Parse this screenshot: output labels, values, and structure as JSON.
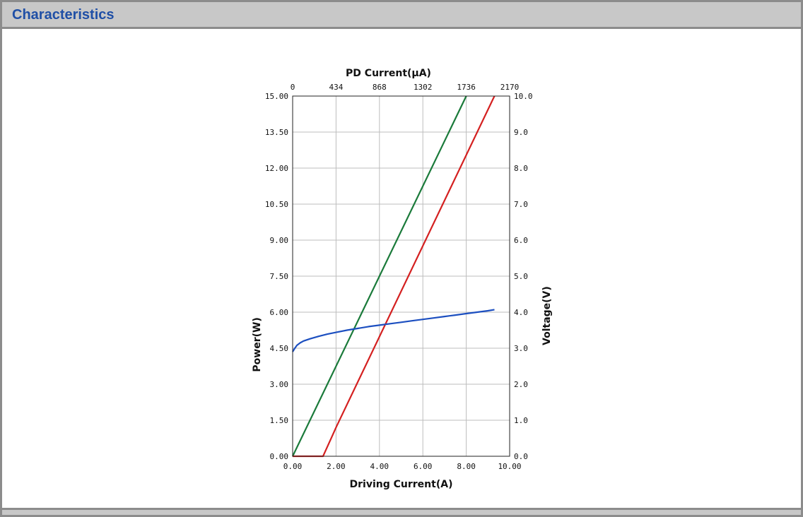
{
  "panel": {
    "title": "Characteristics"
  },
  "chart_data": {
    "type": "line",
    "xlabel": "Driving Current(A)",
    "ylabel": "Power(W)",
    "y2label": "Voltage(V)",
    "x2label": "PD Current(μA)",
    "xlim": [
      0,
      10
    ],
    "ylim": [
      0,
      15
    ],
    "y2lim": [
      0,
      10
    ],
    "x2lim": [
      0,
      2170
    ],
    "grid": true,
    "x_ticks": [
      "0.00",
      "2.00",
      "4.00",
      "6.00",
      "8.00",
      "10.00"
    ],
    "y_ticks": [
      "0.00",
      "1.50",
      "3.00",
      "4.50",
      "6.00",
      "7.50",
      "9.00",
      "10.50",
      "12.00",
      "13.50",
      "15.00"
    ],
    "y2_ticks": [
      "0.0",
      "1.0",
      "2.0",
      "3.0",
      "4.0",
      "5.0",
      "6.0",
      "7.0",
      "8.0",
      "9.0",
      "10.0"
    ],
    "x2_ticks": [
      "0",
      "434",
      "868",
      "1302",
      "1736",
      "2170"
    ],
    "series": [
      {
        "axis": "x2-y",
        "color": "#1a7a3a",
        "x": [
          0,
          1736
        ],
        "y": [
          0,
          15
        ]
      },
      {
        "axis": "x-y",
        "color": "#d42020",
        "x": [
          0,
          1.4,
          1.55,
          1.8,
          2.0,
          9.3
        ],
        "y": [
          0,
          0,
          0.3,
          0.8,
          1.2,
          15
        ]
      },
      {
        "axis": "x-y2",
        "color": "#1c4fc0",
        "x": [
          0,
          0.1,
          0.2,
          0.35,
          0.5,
          0.8,
          1.2,
          1.6,
          2.0,
          2.5,
          3.0,
          3.5,
          4.0,
          4.5,
          5.0,
          5.5,
          6.0,
          6.5,
          7.0,
          7.5,
          8.0,
          8.5,
          9.0,
          9.3
        ],
        "y": [
          2.9,
          3.0,
          3.08,
          3.15,
          3.2,
          3.26,
          3.33,
          3.39,
          3.44,
          3.5,
          3.55,
          3.6,
          3.64,
          3.68,
          3.72,
          3.76,
          3.8,
          3.84,
          3.88,
          3.92,
          3.96,
          4.0,
          4.04,
          4.07
        ]
      }
    ]
  }
}
